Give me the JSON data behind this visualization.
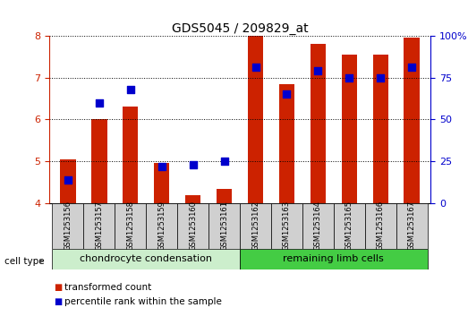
{
  "title": "GDS5045 / 209829_at",
  "samples": [
    "GSM1253156",
    "GSM1253157",
    "GSM1253158",
    "GSM1253159",
    "GSM1253160",
    "GSM1253161",
    "GSM1253162",
    "GSM1253163",
    "GSM1253164",
    "GSM1253165",
    "GSM1253166",
    "GSM1253167"
  ],
  "bar_values": [
    5.05,
    6.0,
    6.3,
    4.95,
    4.2,
    4.35,
    8.0,
    6.85,
    7.8,
    7.55,
    7.55,
    7.95
  ],
  "percentile_values": [
    14,
    60,
    68,
    22,
    23,
    25,
    81,
    65,
    79,
    75,
    75,
    81
  ],
  "bar_bottom": 4.0,
  "ylim_left": [
    4.0,
    8.0
  ],
  "ylim_right": [
    0,
    100
  ],
  "yticks_left": [
    4,
    5,
    6,
    7,
    8
  ],
  "yticks_right": [
    0,
    25,
    50,
    75,
    100
  ],
  "ytick_labels_right": [
    "0",
    "25",
    "50",
    "75",
    "100%"
  ],
  "bar_color": "#cc2200",
  "dot_color": "#0000cc",
  "cell_type_groups": [
    {
      "label": "chondrocyte condensation",
      "start": 0,
      "end": 6,
      "color": "#cceecc"
    },
    {
      "label": "remaining limb cells",
      "start": 6,
      "end": 12,
      "color": "#44cc44"
    }
  ],
  "cell_type_label": "cell type",
  "legend_items": [
    {
      "label": "transformed count",
      "color": "#cc2200"
    },
    {
      "label": "percentile rank within the sample",
      "color": "#0000cc"
    }
  ],
  "left_axis_color": "#cc2200",
  "right_axis_color": "#0000cc",
  "sample_box_color": "#d0d0d0",
  "bar_width": 0.5,
  "dot_size": 30,
  "title_fontsize": 10,
  "axis_fontsize": 8,
  "sample_fontsize": 6,
  "ct_fontsize": 8,
  "legend_fontsize": 7.5
}
